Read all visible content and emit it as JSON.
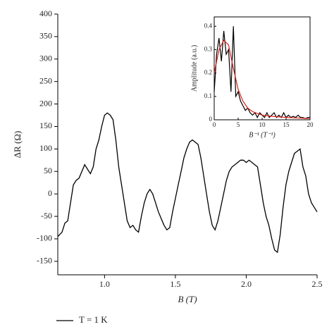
{
  "chart_data": [
    {
      "type": "line",
      "xlabel": "B (T)",
      "ylabel": "ΔR (Ω)",
      "xlim": [
        0.67,
        2.5
      ],
      "xticks": [
        {
          "value": 1,
          "label": "1.0"
        },
        1.5,
        {
          "value": 2,
          "label": "2.0"
        },
        2.5
      ],
      "ylim": [
        -180,
        400
      ],
      "yticks": [
        -150,
        -100,
        -50,
        0,
        50,
        100,
        150,
        200,
        250,
        300,
        350,
        400
      ],
      "legend": "bottom-left",
      "series": [
        {
          "name": "T = 1 K",
          "color": "#000000",
          "x": [
            0.67,
            0.7,
            0.72,
            0.74,
            0.76,
            0.78,
            0.8,
            0.82,
            0.84,
            0.86,
            0.88,
            0.9,
            0.92,
            0.94,
            0.96,
            0.98,
            1.0,
            1.02,
            1.04,
            1.06,
            1.08,
            1.1,
            1.12,
            1.14,
            1.16,
            1.18,
            1.2,
            1.22,
            1.24,
            1.26,
            1.28,
            1.3,
            1.32,
            1.34,
            1.36,
            1.38,
            1.4,
            1.42,
            1.44,
            1.46,
            1.48,
            1.5,
            1.52,
            1.54,
            1.56,
            1.58,
            1.6,
            1.62,
            1.64,
            1.66,
            1.68,
            1.7,
            1.72,
            1.74,
            1.76,
            1.78,
            1.8,
            1.82,
            1.84,
            1.86,
            1.88,
            1.9,
            1.92,
            1.94,
            1.96,
            1.98,
            2.0,
            2.02,
            2.04,
            2.06,
            2.08,
            2.1,
            2.12,
            2.14,
            2.16,
            2.18,
            2.2,
            2.22,
            2.24,
            2.26,
            2.28,
            2.3,
            2.32,
            2.34,
            2.36,
            2.38,
            2.4,
            2.42,
            2.44,
            2.46,
            2.48,
            2.5
          ],
          "values": [
            -95,
            -85,
            -65,
            -60,
            -20,
            20,
            30,
            35,
            50,
            65,
            55,
            45,
            60,
            100,
            120,
            150,
            175,
            180,
            175,
            165,
            120,
            60,
            20,
            -20,
            -60,
            -75,
            -70,
            -80,
            -85,
            -50,
            -20,
            0,
            10,
            0,
            -20,
            -40,
            -55,
            -70,
            -80,
            -75,
            -40,
            -10,
            20,
            50,
            80,
            100,
            115,
            120,
            115,
            110,
            80,
            40,
            0,
            -40,
            -70,
            -80,
            -60,
            -30,
            0,
            30,
            50,
            60,
            65,
            70,
            75,
            75,
            70,
            75,
            70,
            65,
            60,
            20,
            -20,
            -50,
            -70,
            -100,
            -125,
            -130,
            -90,
            -30,
            20,
            50,
            70,
            90,
            95,
            100,
            60,
            40,
            0,
            -20,
            -30,
            -40
          ]
        }
      ]
    },
    {
      "type": "line",
      "xlabel": "B⁻¹ (T⁻¹)",
      "ylabel": "Amplitude (a.u.)",
      "xlim": [
        0,
        20
      ],
      "xticks": [
        0,
        5,
        10,
        15,
        20
      ],
      "ylim": [
        0,
        0.44
      ],
      "yticks": [
        0,
        0.1,
        0.2,
        0.3,
        0.4
      ],
      "series": [
        {
          "color": "#000000",
          "x": [
            0,
            0.5,
            1,
            1.5,
            2,
            2.5,
            3,
            3.5,
            4,
            4.5,
            5,
            5.5,
            6,
            6.5,
            7,
            7.5,
            8,
            8.5,
            9,
            9.5,
            10,
            10.5,
            11,
            11.5,
            12,
            12.5,
            13,
            13.5,
            14,
            14.5,
            15,
            15.5,
            16,
            16.5,
            17,
            17.5,
            18,
            18.5,
            19,
            19.5,
            20
          ],
          "values": [
            0.12,
            0.28,
            0.35,
            0.25,
            0.38,
            0.28,
            0.3,
            0.12,
            0.4,
            0.1,
            0.12,
            0.08,
            0.06,
            0.04,
            0.05,
            0.03,
            0.02,
            0.03,
            0.01,
            0.03,
            0.02,
            0.01,
            0.03,
            0.01,
            0.02,
            0.03,
            0.01,
            0.02,
            0.01,
            0.03,
            0.01,
            0.02,
            0.01,
            0.015,
            0.01,
            0.02,
            0.01,
            0.01,
            0.005,
            0.01,
            0.01
          ]
        },
        {
          "color": "#e0201b",
          "x": [
            0,
            1,
            2,
            3,
            4,
            5,
            6,
            7,
            8,
            10,
            12,
            15,
            20
          ],
          "values": [
            0.2,
            0.3,
            0.34,
            0.32,
            0.22,
            0.13,
            0.08,
            0.05,
            0.035,
            0.02,
            0.015,
            0.01,
            0.005
          ]
        }
      ]
    }
  ]
}
